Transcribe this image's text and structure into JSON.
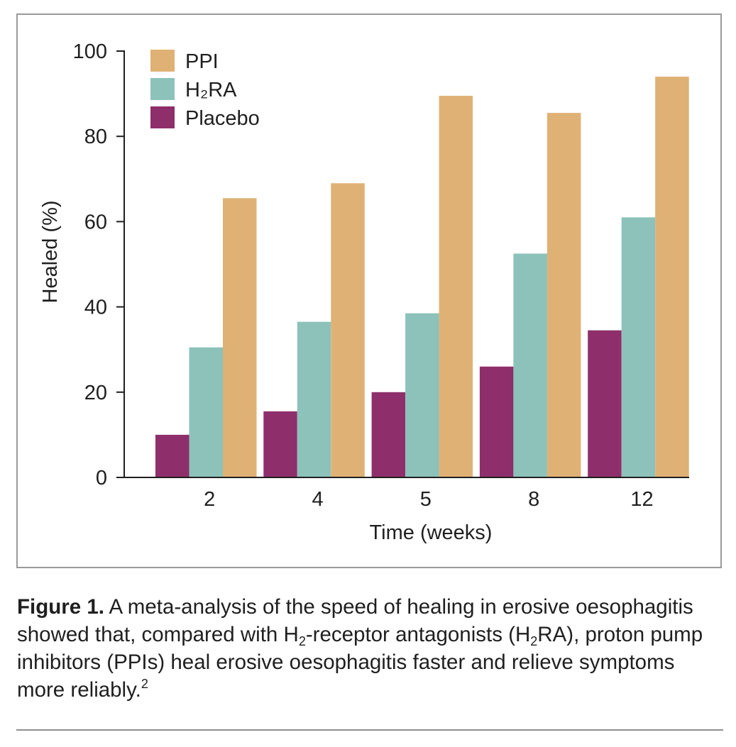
{
  "chart_data": {
    "type": "bar",
    "title": "",
    "xlabel": "Time (weeks)",
    "ylabel": "Healed (%)",
    "categories": [
      "2",
      "4",
      "5",
      "8",
      "12"
    ],
    "ylim": [
      0,
      100
    ],
    "yticks": [
      0,
      20,
      40,
      60,
      80,
      100
    ],
    "grid": false,
    "legend_position": "top-left",
    "series": [
      {
        "name": "Placebo",
        "legend_label": "Placebo",
        "color": "#8e2f6b",
        "values": [
          10,
          15.5,
          20,
          26,
          34.5
        ]
      },
      {
        "name": "H2RA",
        "legend_label": "H₂RA",
        "color": "#8cc2ba",
        "values": [
          30.5,
          36.5,
          38.5,
          52.5,
          61
        ]
      },
      {
        "name": "PPI",
        "legend_label": "PPI",
        "color": "#dfb175",
        "values": [
          65.5,
          69,
          89.5,
          85.5,
          94
        ]
      }
    ],
    "legend_order": [
      2,
      1,
      0
    ]
  },
  "caption": {
    "label": "Figure 1.",
    "part1": "A meta-analysis of the speed of healing in erosive oesophagitis showed that, compared with H",
    "sub1": "2",
    "part2": "-receptor antagonists (H",
    "sub2": "2",
    "part3": "RA), proton pump inhibitors (PPIs) heal erosive oesophagitis faster and relieve symptoms more reliably.",
    "ref": "2"
  }
}
